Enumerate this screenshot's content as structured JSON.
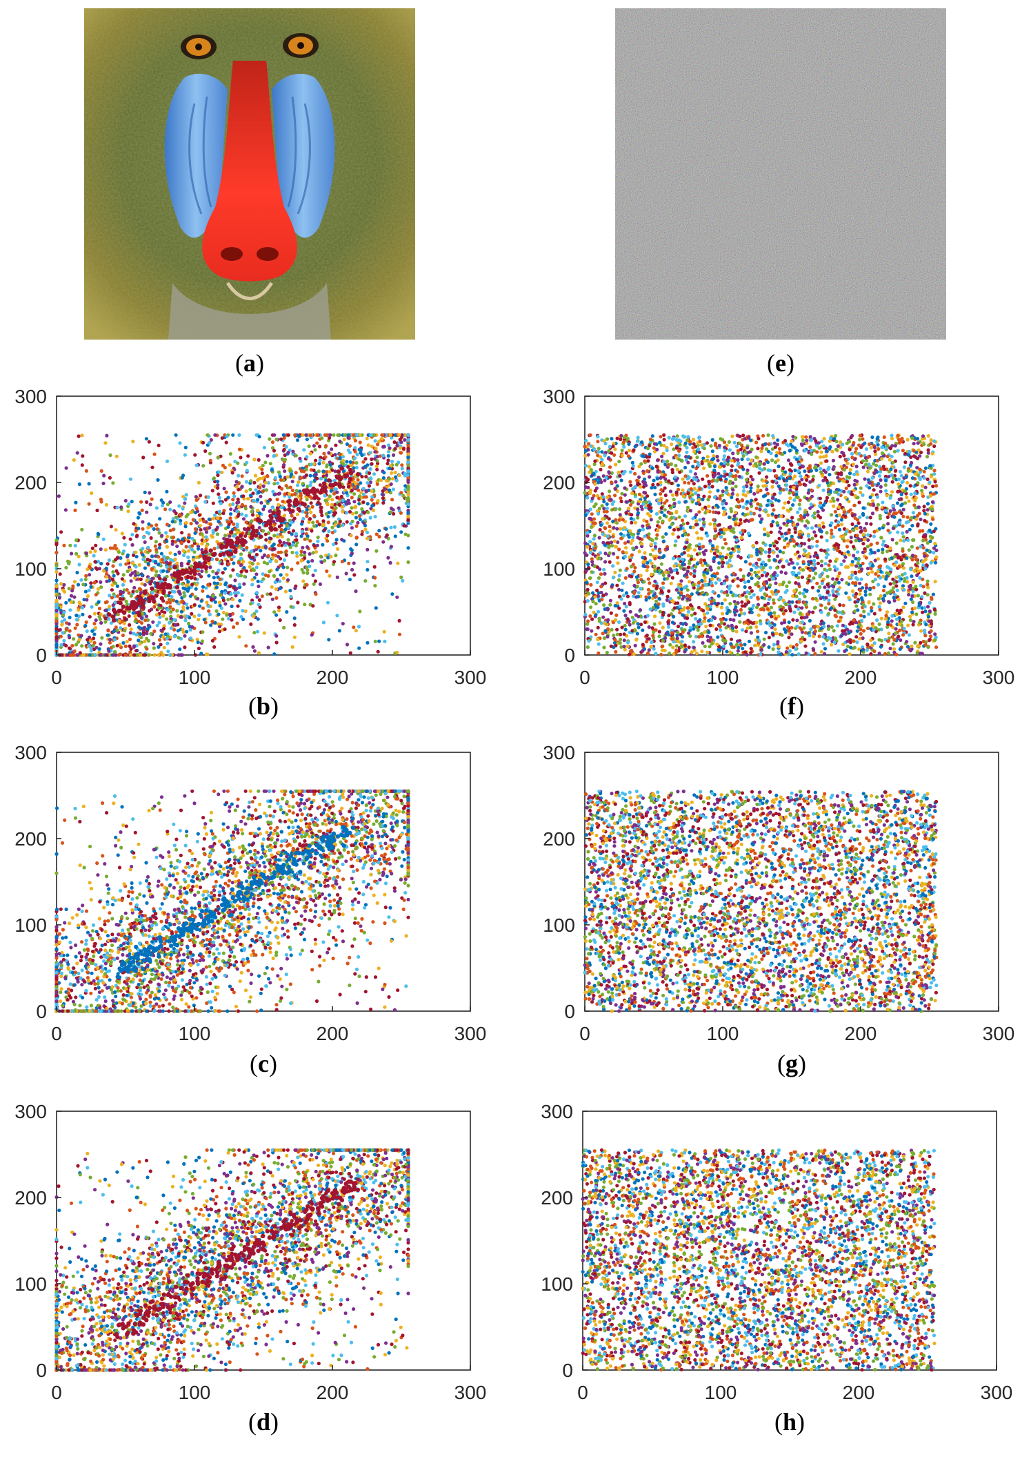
{
  "figure": {
    "panels": [
      {
        "id": "a",
        "kind": "image",
        "caption_open": "(",
        "caption_letter": "a",
        "caption_close": ")",
        "subject": "mandrill-plain-image"
      },
      {
        "id": "e",
        "kind": "image",
        "caption_open": "(",
        "caption_letter": "e",
        "caption_close": ")",
        "subject": "cipher-noise-image"
      }
    ]
  },
  "colors": {
    "palette": [
      "#0072BD",
      "#D95319",
      "#EDB120",
      "#7E2F8E",
      "#77AC30",
      "#4DBEEE",
      "#A2142F"
    ],
    "frame": "#262626",
    "background": "#ffffff"
  },
  "chart_data": [
    {
      "id": "b",
      "type": "scatter",
      "caption_open": "(",
      "caption_letter": "b",
      "caption_close": ")",
      "xlim": [
        0,
        300
      ],
      "ylim": [
        0,
        300
      ],
      "x_ticks": [
        "0",
        "100",
        "200",
        "300"
      ],
      "y_ticks": [
        "0",
        "100",
        "200",
        "300"
      ],
      "grid": false,
      "distribution": "correlated",
      "point_range": [
        0,
        255
      ],
      "highlight_color": "#A2142F",
      "diagonal_streak": [
        [
          45,
          45
        ],
        [
          215,
          215
        ]
      ]
    },
    {
      "id": "c",
      "type": "scatter",
      "caption_open": "(",
      "caption_letter": "c",
      "caption_close": ")",
      "xlim": [
        0,
        300
      ],
      "ylim": [
        0,
        300
      ],
      "x_ticks": [
        "0",
        "100",
        "200",
        "300"
      ],
      "y_ticks": [
        "0",
        "100",
        "200",
        "300"
      ],
      "grid": false,
      "distribution": "correlated",
      "point_range": [
        0,
        255
      ],
      "highlight_color": "#0072BD",
      "diagonal_streak": [
        [
          45,
          45
        ],
        [
          215,
          215
        ]
      ]
    },
    {
      "id": "d",
      "type": "scatter",
      "caption_open": "(",
      "caption_letter": "d",
      "caption_close": ")",
      "xlim": [
        0,
        300
      ],
      "ylim": [
        0,
        300
      ],
      "x_ticks": [
        "0",
        "100",
        "200",
        "300"
      ],
      "y_ticks": [
        "0",
        "100",
        "200",
        "300"
      ],
      "grid": false,
      "distribution": "correlated",
      "point_range": [
        0,
        255
      ],
      "highlight_color": "#A2142F",
      "diagonal_streak": [
        [
          45,
          45
        ],
        [
          215,
          215
        ]
      ]
    },
    {
      "id": "f",
      "type": "scatter",
      "caption_open": "(",
      "caption_letter": "f",
      "caption_close": ")",
      "xlim": [
        0,
        300
      ],
      "ylim": [
        0,
        300
      ],
      "x_ticks": [
        "0",
        "100",
        "200",
        "300"
      ],
      "y_ticks": [
        "0",
        "100",
        "200",
        "300"
      ],
      "grid": false,
      "distribution": "uniform",
      "point_range": [
        0,
        255
      ]
    },
    {
      "id": "g",
      "type": "scatter",
      "caption_open": "(",
      "caption_letter": "g",
      "caption_close": ")",
      "xlim": [
        0,
        300
      ],
      "ylim": [
        0,
        300
      ],
      "x_ticks": [
        "0",
        "100",
        "200",
        "300"
      ],
      "y_ticks": [
        "0",
        "100",
        "200",
        "300"
      ],
      "grid": false,
      "distribution": "uniform",
      "point_range": [
        0,
        255
      ]
    },
    {
      "id": "h",
      "type": "scatter",
      "caption_open": "(",
      "caption_letter": "h",
      "caption_close": ")",
      "xlim": [
        0,
        300
      ],
      "ylim": [
        0,
        300
      ],
      "x_ticks": [
        "0",
        "100",
        "200",
        "300"
      ],
      "y_ticks": [
        "0",
        "100",
        "200",
        "300"
      ],
      "grid": false,
      "distribution": "uniform",
      "point_range": [
        0,
        255
      ]
    }
  ]
}
